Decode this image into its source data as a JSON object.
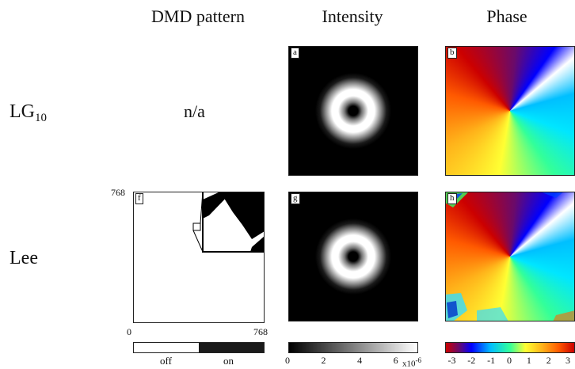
{
  "columns": {
    "dmd": "DMD pattern",
    "intensity": "Intensity",
    "phase": "Phase"
  },
  "rows": {
    "lg": {
      "label_main": "LG",
      "label_sub": "10",
      "dmd_text": "n/a"
    },
    "lee": {
      "label": "Lee"
    }
  },
  "panels": {
    "a": "a",
    "b": "b",
    "f": "f",
    "g": "g",
    "h": "h"
  },
  "dmd_axes": {
    "y_top": "768",
    "x_left": "0",
    "x_right": "768"
  },
  "colorbars": {
    "dmd": {
      "off": "off",
      "on": "on",
      "off_color": "#ffffff",
      "on_color": "#1a1a1a"
    },
    "intensity": {
      "ticks": [
        "0",
        "2",
        "4",
        "6"
      ],
      "multiplier": "x10",
      "exponent": "-6"
    },
    "phase": {
      "ticks": [
        "-3",
        "-2",
        "-1",
        "0",
        "1",
        "2",
        "3"
      ]
    }
  }
}
